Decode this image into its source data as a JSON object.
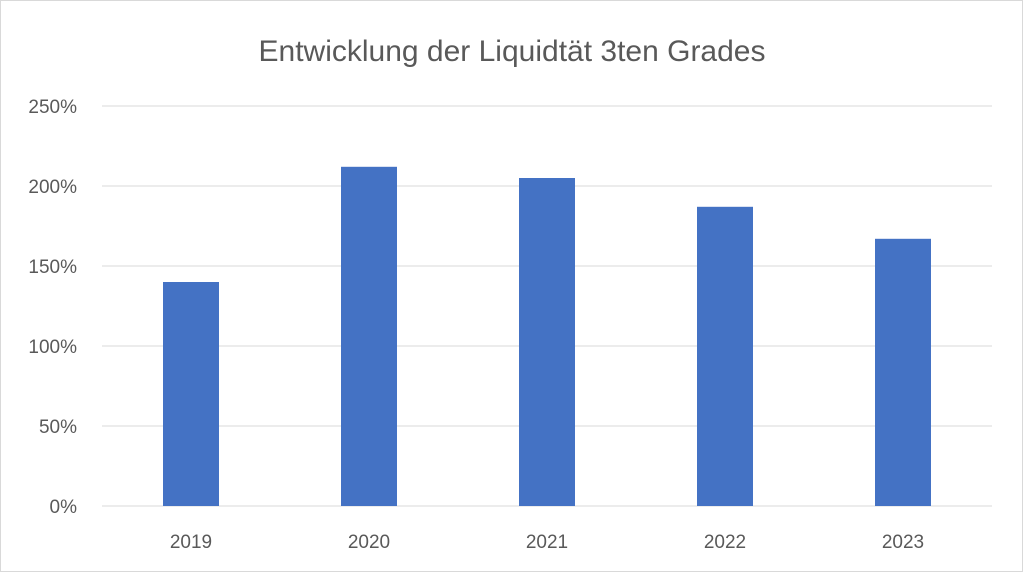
{
  "chart_data": {
    "type": "bar",
    "title": "Entwicklung der Liquidtät 3ten Grades",
    "categories": [
      "2019",
      "2020",
      "2021",
      "2022",
      "2023"
    ],
    "values": [
      140,
      212,
      205,
      187,
      167
    ],
    "value_unit": "%",
    "ylim": [
      0,
      250
    ],
    "yticks": [
      "0%",
      "50%",
      "100%",
      "150%",
      "200%",
      "250%"
    ],
    "ytick_values": [
      0,
      50,
      100,
      150,
      200,
      250
    ],
    "grid": true,
    "legend": "none",
    "bar_color": "#4472c4"
  }
}
